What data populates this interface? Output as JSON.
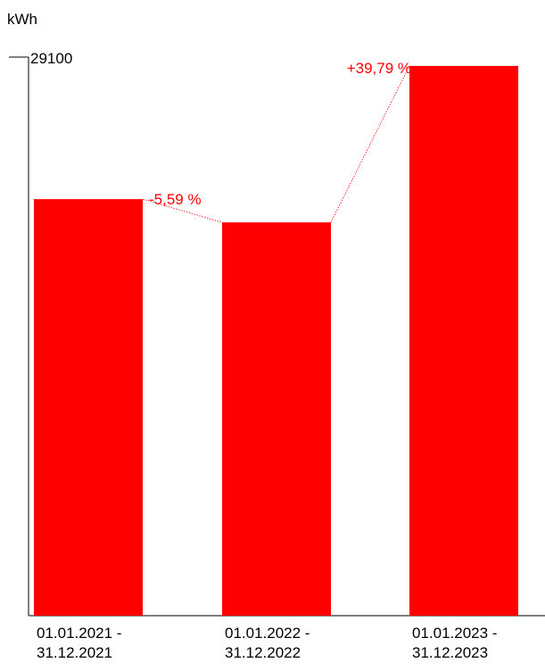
{
  "chart_data": {
    "type": "bar",
    "ylabel": "kWh",
    "ymax_tick_label": "29100",
    "ylim": [
      0,
      29100
    ],
    "categories": [
      [
        "01.01.2021 -",
        "31.12.2021"
      ],
      [
        "01.01.2022 -",
        "31.12.2022"
      ],
      [
        "01.01.2023 -",
        "31.12.2023"
      ]
    ],
    "values": [
      21700,
      20490,
      28640
    ],
    "changes": [
      "-5,59 %",
      "+39,79 %"
    ],
    "bar_color": "#ff0000",
    "change_color": "#ff0000",
    "axis_color": "#000000",
    "grid": false,
    "legend": "none"
  }
}
